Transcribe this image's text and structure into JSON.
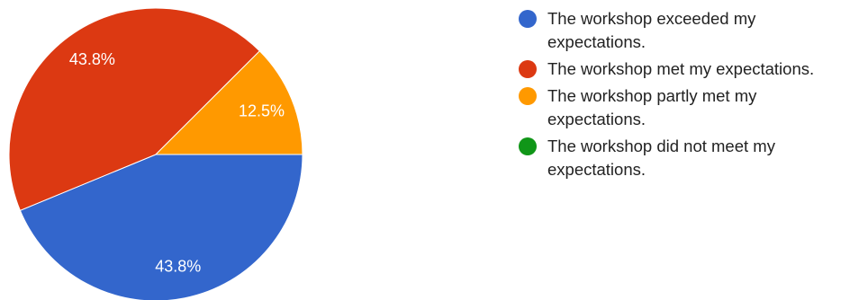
{
  "chart_data": {
    "type": "pie",
    "categories": [
      "The workshop exceeded my\nexpectations.",
      "The workshop met my expectations.",
      "The workshop partly met my\nexpectations.",
      "The workshop did not meet my\nexpectations."
    ],
    "values": [
      43.8,
      43.8,
      12.5,
      0
    ],
    "data_labels": [
      "43.8%",
      "43.8%",
      "12.5%",
      ""
    ],
    "colors": [
      "#3366cc",
      "#dc3912",
      "#ff9900",
      "#109618"
    ],
    "legend_position": "right",
    "start_angle_deg": 90,
    "direction": "clockwise"
  }
}
